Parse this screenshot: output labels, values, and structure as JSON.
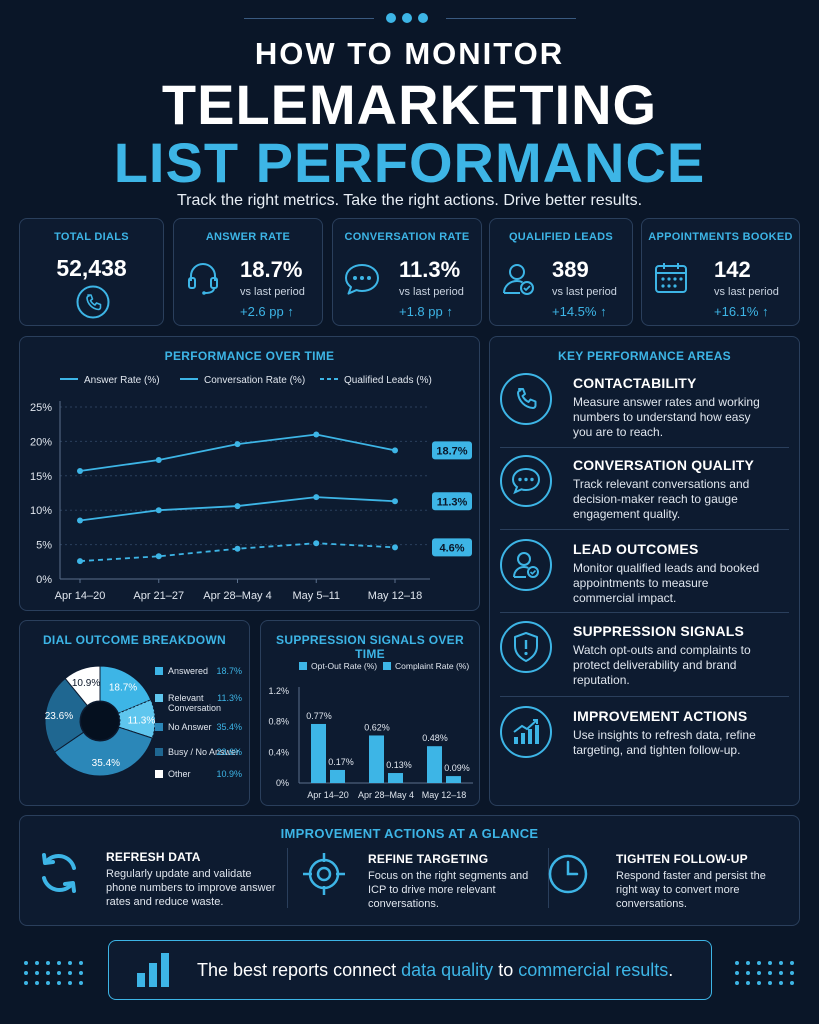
{
  "header": {
    "line1": "HOW TO MONITOR",
    "line2": "TELEMARKETING",
    "line3": "LIST PERFORMANCE",
    "subtitle": "Track the right metrics. Take the right actions. Drive better results."
  },
  "kpis": [
    {
      "title": "TOTAL DIALS",
      "value": "52,438",
      "icon": "phone-icon"
    },
    {
      "title": "ANSWER RATE",
      "value": "18.7%",
      "sub": "vs last period",
      "delta": "+2.6 pp",
      "icon": "headset-icon"
    },
    {
      "title": "CONVERSATION RATE",
      "value": "11.3%",
      "sub": "vs last period",
      "delta": "+1.8 pp",
      "icon": "chat-bubble-icon"
    },
    {
      "title": "QUALIFIED LEADS",
      "value": "389",
      "sub": "vs last period",
      "delta": "+14.5%",
      "icon": "user-check-icon"
    },
    {
      "title": "APPOINTMENTS BOOKED",
      "value": "142",
      "sub": "vs last period",
      "delta": "+16.1%",
      "icon": "calendar-icon"
    }
  ],
  "arrow_glyph": "↑",
  "colors": {
    "accent": "#3db5e6",
    "background": "#0a1628",
    "card": "#0d1b30",
    "border": "#2a3f5c"
  },
  "chart_data": [
    {
      "type": "line",
      "title": "PERFORMANCE OVER TIME",
      "categories": [
        "Apr 14–20",
        "Apr 21–27",
        "Apr 28–May 4",
        "May 5–11",
        "May 12–18"
      ],
      "ylim": [
        0,
        25
      ],
      "yticks": [
        "0%",
        "5%",
        "10%",
        "15%",
        "20%",
        "25%"
      ],
      "grid": true,
      "legend": "top",
      "series": [
        {
          "name": "Answer Rate (%)",
          "values": [
            15.7,
            17.3,
            19.6,
            21.0,
            18.7
          ],
          "end_label": "18.7%",
          "style": "solid"
        },
        {
          "name": "Conversation Rate (%)",
          "values": [
            8.5,
            10.0,
            10.6,
            11.9,
            11.3
          ],
          "end_label": "11.3%",
          "style": "solid"
        },
        {
          "name": "Qualified Leads (%)",
          "values": [
            2.6,
            3.3,
            4.4,
            5.2,
            4.6
          ],
          "end_label": "4.6%",
          "style": "dashed"
        }
      ]
    },
    {
      "type": "pie",
      "title": "DIAL OUTCOME BREAKDOWN",
      "slices": [
        {
          "name": "Answered",
          "value": 18.7,
          "label": "18.7%",
          "legend_value": "18.7%",
          "color": "#3db5e6"
        },
        {
          "name": "Relevant Conversation",
          "value": 11.3,
          "label": "11.3%",
          "legend_value": "11.3%",
          "color": "#5fc6ee"
        },
        {
          "name": "No Answer",
          "value": 35.4,
          "label": "35.4%",
          "legend_value": "35.4%",
          "color": "#2b87b8"
        },
        {
          "name": "Busy / No Answer",
          "value": 23.6,
          "label": "23.6%",
          "legend_value": "23.6%",
          "color": "#1f6791"
        },
        {
          "name": "Other",
          "value": 10.9,
          "label": "10.9%",
          "legend_value": "10.9%",
          "color": "#ffffff"
        }
      ]
    },
    {
      "type": "bar",
      "title": "SUPPRESSION SIGNALS OVER TIME",
      "categories": [
        "Apr 14–20",
        "Apr 28–May 4",
        "May 12–18"
      ],
      "ylim": [
        0,
        1.2
      ],
      "yticks": [
        "0%",
        "0.4%",
        "0.8%",
        "1.2%"
      ],
      "legend": "top",
      "series": [
        {
          "name": "Opt-Out Rate (%)",
          "values": [
            0.77,
            0.62,
            0.48
          ],
          "labels": [
            "0.77%",
            "0.62%",
            "0.48%"
          ],
          "color": "#3db5e6"
        },
        {
          "name": "Complaint Rate (%)",
          "values": [
            0.17,
            0.13,
            0.09
          ],
          "labels": [
            "0.17%",
            "0.13%",
            "0.09%"
          ],
          "color": "#3db5e6"
        }
      ]
    }
  ],
  "key_areas": {
    "title": "KEY PERFORMANCE AREAS",
    "items": [
      {
        "title": "CONTACTABILITY",
        "desc": "Measure answer rates and working numbers to understand how easy you are to reach.",
        "icon": "phone-icon"
      },
      {
        "title": "CONVERSATION QUALITY",
        "desc": "Track relevant conversations and decision-maker reach to gauge engagement quality.",
        "icon": "chat-bubble-icon"
      },
      {
        "title": "LEAD OUTCOMES",
        "desc": "Monitor qualified leads and booked appointments to measure commercial impact.",
        "icon": "user-check-icon"
      },
      {
        "title": "SUPPRESSION SIGNALS",
        "desc": "Watch opt-outs and complaints to protect deliverability and brand reputation.",
        "icon": "shield-alert-icon"
      },
      {
        "title": "IMPROVEMENT ACTIONS",
        "desc": "Use insights to refresh data, refine targeting, and tighten follow-up.",
        "icon": "growth-chart-icon"
      }
    ]
  },
  "improvement": {
    "title": "IMPROVEMENT ACTIONS AT A GLANCE",
    "items": [
      {
        "title": "REFRESH DATA",
        "desc": "Regularly update and validate phone numbers to improve answer rates and reduce waste.",
        "icon": "refresh-icon"
      },
      {
        "title": "REFINE TARGETING",
        "desc": "Focus on the right segments and ICP to drive more relevant conversations.",
        "icon": "target-icon"
      },
      {
        "title": "TIGHTEN FOLLOW-UP",
        "desc": "Respond faster and persist the right way to convert more conversations.",
        "icon": "clock-icon"
      }
    ]
  },
  "footer": {
    "text_before": "The best reports connect ",
    "highlight1": "data quality",
    "text_middle": " to ",
    "highlight2": "commercial results",
    "text_after": "."
  }
}
